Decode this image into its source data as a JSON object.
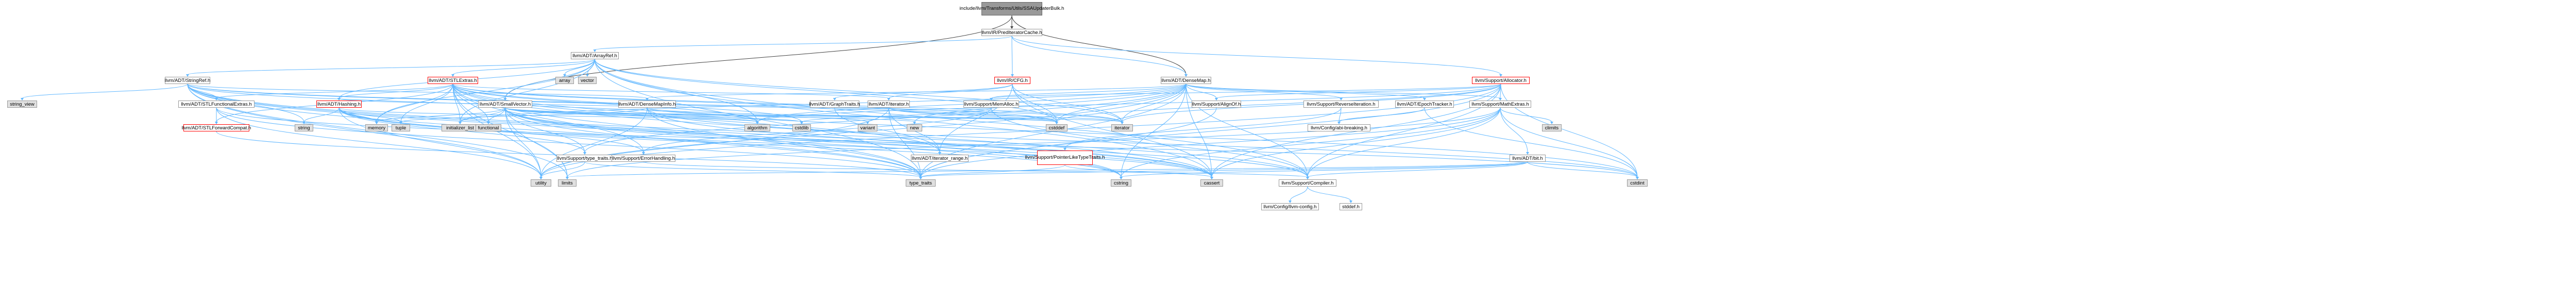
{
  "graph": {
    "title": "include/llvm/Transforms/Utils/SSAUpdaterBulk.h",
    "nodes": [
      {
        "id": "root",
        "label": "include/llvm/Transforms/Utils/SSAUpdaterBulk.h",
        "kind": "root"
      },
      {
        "id": "predcache",
        "label": "llvm/IR/PredIteratorCache.h",
        "kind": "file"
      },
      {
        "id": "arrayref",
        "label": "llvm/ADT/ArrayRef.h",
        "kind": "file"
      },
      {
        "id": "densemap",
        "label": "llvm/ADT/DenseMap.h",
        "kind": "file"
      },
      {
        "id": "allocator",
        "label": "llvm/Support/Allocator.h",
        "kind": "red"
      },
      {
        "id": "cfg",
        "label": "llvm/IR/CFG.h",
        "kind": "red"
      },
      {
        "id": "stringref",
        "label": "llvm/ADT/StringRef.h",
        "kind": "file"
      },
      {
        "id": "stlextras",
        "label": "llvm/ADT/STLExtras.h",
        "kind": "red"
      },
      {
        "id": "array",
        "label": "array",
        "kind": "std"
      },
      {
        "id": "vector",
        "label": "vector",
        "kind": "std"
      },
      {
        "id": "smallvector",
        "label": "llvm/ADT/SmallVector.h",
        "kind": "file"
      },
      {
        "id": "hashing",
        "label": "llvm/ADT/Hashing.h",
        "kind": "red"
      },
      {
        "id": "stlfunc",
        "label": "llvm/ADT/STLFunctionalExtras.h",
        "kind": "file"
      },
      {
        "id": "stlfwd",
        "label": "llvm/ADT/STLForwardCompat.h",
        "kind": "red"
      },
      {
        "id": "densemapinfo",
        "label": "llvm/ADT/DenseMapInfo.h",
        "kind": "file"
      },
      {
        "id": "graphtraits",
        "label": "llvm/ADT/GraphTraits.h",
        "kind": "file"
      },
      {
        "id": "adtiterator",
        "label": "llvm/ADT/iterator.h",
        "kind": "file"
      },
      {
        "id": "memalloc",
        "label": "llvm/Support/MemAlloc.h",
        "kind": "file"
      },
      {
        "id": "alignof",
        "label": "llvm/Support/AlignOf.h",
        "kind": "file"
      },
      {
        "id": "reverseiter",
        "label": "llvm/Support/ReverseIteration.h",
        "kind": "file"
      },
      {
        "id": "epochtracker",
        "label": "llvm/ADT/EpochTracker.h",
        "kind": "file"
      },
      {
        "id": "mathextras",
        "label": "llvm/Support/MathExtras.h",
        "kind": "file"
      },
      {
        "id": "bit",
        "label": "llvm/ADT/bit.h",
        "kind": "file"
      },
      {
        "id": "ptrliketypetraits",
        "label": "llvm/Support/PointerLikeTypeTraits.h",
        "kind": "red"
      },
      {
        "id": "typetraits",
        "label": "llvm/Support/type_traits.h",
        "kind": "file"
      },
      {
        "id": "errorhandling",
        "label": "llvm/Support/ErrorHandling.h",
        "kind": "file"
      },
      {
        "id": "iterrange",
        "label": "llvm/ADT/iterator_range.h",
        "kind": "file"
      },
      {
        "id": "configabi",
        "label": "llvm/Config/abi-breaking.h",
        "kind": "file"
      },
      {
        "id": "compiler",
        "label": "llvm/Support/Compiler.h",
        "kind": "file"
      },
      {
        "id": "llvmconfig",
        "label": "llvm/Config/llvm-config.h",
        "kind": "file"
      },
      {
        "id": "stddef",
        "label": "stddef.h",
        "kind": "file"
      },
      {
        "id": "string_view",
        "label": "string_view",
        "kind": "std"
      },
      {
        "id": "string",
        "label": "string",
        "kind": "std"
      },
      {
        "id": "memory",
        "label": "memory",
        "kind": "std"
      },
      {
        "id": "tuple",
        "label": "tuple",
        "kind": "std"
      },
      {
        "id": "initlist",
        "label": "initializer_list",
        "kind": "std"
      },
      {
        "id": "functional",
        "label": "functional",
        "kind": "std"
      },
      {
        "id": "algorithm",
        "label": "algorithm",
        "kind": "std"
      },
      {
        "id": "cstdlib",
        "label": "cstdlib",
        "kind": "std"
      },
      {
        "id": "variant",
        "label": "variant",
        "kind": "std"
      },
      {
        "id": "new",
        "label": "new",
        "kind": "std"
      },
      {
        "id": "cstddef",
        "label": "cstddef",
        "kind": "std"
      },
      {
        "id": "iterator",
        "label": "iterator",
        "kind": "std"
      },
      {
        "id": "climits",
        "label": "climits",
        "kind": "std"
      },
      {
        "id": "utility",
        "label": "utility",
        "kind": "std"
      },
      {
        "id": "limits",
        "label": "limits",
        "kind": "std"
      },
      {
        "id": "type_traits",
        "label": "type_traits",
        "kind": "std"
      },
      {
        "id": "cstring",
        "label": "cstring",
        "kind": "std"
      },
      {
        "id": "cassert",
        "label": "cassert",
        "kind": "std"
      },
      {
        "id": "cstdint",
        "label": "cstdint",
        "kind": "std"
      }
    ],
    "edges": [
      [
        "root",
        "predcache"
      ],
      [
        "root",
        "densemap"
      ],
      [
        "root",
        "smallvector"
      ],
      [
        "predcache",
        "arrayref"
      ],
      [
        "predcache",
        "densemap"
      ],
      [
        "predcache",
        "allocator"
      ],
      [
        "predcache",
        "cfg"
      ],
      [
        "arrayref",
        "stlextras"
      ],
      [
        "arrayref",
        "smallvector"
      ],
      [
        "arrayref",
        "stringref"
      ],
      [
        "arrayref",
        "array"
      ],
      [
        "arrayref",
        "vector"
      ],
      [
        "arrayref",
        "hashing"
      ],
      [
        "arrayref",
        "compiler"
      ],
      [
        "arrayref",
        "algorithm"
      ],
      [
        "arrayref",
        "cassert"
      ],
      [
        "arrayref",
        "cstddef"
      ],
      [
        "arrayref",
        "initlist"
      ],
      [
        "arrayref",
        "iterator"
      ],
      [
        "arrayref",
        "memory"
      ],
      [
        "arrayref",
        "type_traits"
      ],
      [
        "stringref",
        "stlfunc"
      ],
      [
        "stringref",
        "compiler"
      ],
      [
        "stringref",
        "string_view"
      ],
      [
        "stringref",
        "string"
      ],
      [
        "stringref",
        "algorithm"
      ],
      [
        "stringref",
        "cassert"
      ],
      [
        "stringref",
        "cstddef"
      ],
      [
        "stringref",
        "cstring"
      ],
      [
        "stringref",
        "iterator"
      ],
      [
        "stringref",
        "limits"
      ],
      [
        "stringref",
        "type_traits"
      ],
      [
        "stringref",
        "utility"
      ],
      [
        "stringref",
        "densemapinfo"
      ],
      [
        "stlextras",
        "hashing"
      ],
      [
        "stlextras",
        "stlfunc"
      ],
      [
        "stlextras",
        "stlfwd"
      ],
      [
        "stlextras",
        "iterrange"
      ],
      [
        "stlextras",
        "adtiterator"
      ],
      [
        "stlextras",
        "errorhandling"
      ],
      [
        "stlextras",
        "algorithm"
      ],
      [
        "stlextras",
        "cassert"
      ],
      [
        "stlextras",
        "cstddef"
      ],
      [
        "stlextras",
        "cstdint"
      ],
      [
        "stlextras",
        "cstdlib"
      ],
      [
        "stlextras",
        "functional"
      ],
      [
        "stlextras",
        "initlist"
      ],
      [
        "stlextras",
        "iterator"
      ],
      [
        "stlextras",
        "limits"
      ],
      [
        "stlextras",
        "memory"
      ],
      [
        "stlextras",
        "optional"
      ],
      [
        "stlextras",
        "tuple"
      ],
      [
        "stlextras",
        "type_traits"
      ],
      [
        "stlextras",
        "utility"
      ],
      [
        "hashing",
        "errorhandling"
      ],
      [
        "hashing",
        "typetraits"
      ],
      [
        "hashing",
        "memory"
      ],
      [
        "hashing",
        "algorithm"
      ],
      [
        "hashing",
        "cassert"
      ],
      [
        "hashing",
        "cstring"
      ],
      [
        "hashing",
        "string"
      ],
      [
        "hashing",
        "tuple"
      ],
      [
        "hashing",
        "utility"
      ],
      [
        "stlfunc",
        "stlfwd"
      ],
      [
        "stlfunc",
        "type_traits"
      ],
      [
        "stlfunc",
        "utility"
      ],
      [
        "stlfunc",
        "cstdint"
      ],
      [
        "stlfwd",
        "type_traits"
      ],
      [
        "smallvector",
        "compiler"
      ],
      [
        "smallvector",
        "typetraits"
      ],
      [
        "smallvector",
        "algorithm"
      ],
      [
        "smallvector",
        "cassert"
      ],
      [
        "smallvector",
        "cstddef"
      ],
      [
        "smallvector",
        "cstdlib"
      ],
      [
        "smallvector",
        "cstring"
      ],
      [
        "smallvector",
        "functional"
      ],
      [
        "smallvector",
        "initlist"
      ],
      [
        "smallvector",
        "iterator"
      ],
      [
        "smallvector",
        "limits"
      ],
      [
        "smallvector",
        "memory"
      ],
      [
        "smallvector",
        "new"
      ],
      [
        "smallvector",
        "type_traits"
      ],
      [
        "smallvector",
        "utility"
      ],
      [
        "densemap",
        "densemapinfo"
      ],
      [
        "densemap",
        "epochtracker"
      ],
      [
        "densemap",
        "alignof"
      ],
      [
        "densemap",
        "compiler"
      ],
      [
        "densemap",
        "mathextras"
      ],
      [
        "densemap",
        "memalloc"
      ],
      [
        "densemap",
        "reverseiter"
      ],
      [
        "densemap",
        "typetraits"
      ],
      [
        "densemap",
        "algorithm"
      ],
      [
        "densemap",
        "cassert"
      ],
      [
        "densemap",
        "cstddef"
      ],
      [
        "densemap",
        "cstring"
      ],
      [
        "densemap",
        "initlist"
      ],
      [
        "densemap",
        "iterator"
      ],
      [
        "densemap",
        "new"
      ],
      [
        "densemap",
        "type_traits"
      ],
      [
        "densemap",
        "utility"
      ],
      [
        "densemapinfo",
        "hashing"
      ],
      [
        "densemapinfo",
        "cassert"
      ],
      [
        "densemapinfo",
        "cstddef"
      ],
      [
        "densemapinfo",
        "cstdint"
      ],
      [
        "densemapinfo",
        "tuple"
      ],
      [
        "densemapinfo",
        "type_traits"
      ],
      [
        "densemapinfo",
        "utility"
      ],
      [
        "densemapinfo",
        "variant"
      ],
      [
        "cfg",
        "graphtraits"
      ],
      [
        "cfg",
        "adtiterator"
      ],
      [
        "cfg",
        "iterrange"
      ],
      [
        "cfg",
        "cassert"
      ],
      [
        "cfg",
        "cstddef"
      ],
      [
        "cfg",
        "iterator"
      ],
      [
        "graphtraits",
        "iterrange"
      ],
      [
        "adtiterator",
        "iterrange"
      ],
      [
        "adtiterator",
        "cstddef"
      ],
      [
        "adtiterator",
        "iterator"
      ],
      [
        "adtiterator",
        "type_traits"
      ],
      [
        "adtiterator",
        "utility"
      ],
      [
        "memalloc",
        "compiler"
      ],
      [
        "memalloc",
        "errorhandling"
      ],
      [
        "memalloc",
        "cstdlib"
      ],
      [
        "alignof",
        "type_traits"
      ],
      [
        "reverseiter",
        "ptrliketypetraits"
      ],
      [
        "reverseiter",
        "configabi"
      ],
      [
        "epochtracker",
        "configabi"
      ],
      [
        "epochtracker",
        "cstdint"
      ],
      [
        "allocator",
        "mathextras"
      ],
      [
        "allocator",
        "compiler"
      ],
      [
        "allocator",
        "memalloc"
      ],
      [
        "allocator",
        "alignof"
      ],
      [
        "allocator",
        "algorithm"
      ],
      [
        "allocator",
        "cassert"
      ],
      [
        "allocator",
        "cstddef"
      ],
      [
        "allocator",
        "cstdint"
      ],
      [
        "allocator",
        "iterator"
      ],
      [
        "allocator",
        "type_traits"
      ],
      [
        "allocator",
        "utility"
      ],
      [
        "mathextras",
        "bit"
      ],
      [
        "mathextras",
        "compiler"
      ],
      [
        "mathextras",
        "cassert"
      ],
      [
        "mathextras",
        "climits"
      ],
      [
        "mathextras",
        "cstdint"
      ],
      [
        "mathextras",
        "cstring"
      ],
      [
        "mathextras",
        "limits"
      ],
      [
        "mathextras",
        "type_traits"
      ],
      [
        "bit",
        "compiler"
      ],
      [
        "bit",
        "cstdint"
      ],
      [
        "bit",
        "limits"
      ],
      [
        "bit",
        "type_traits"
      ],
      [
        "bit",
        "cstring"
      ],
      [
        "ptrliketypetraits",
        "type_traits"
      ],
      [
        "ptrliketypetraits",
        "cassert"
      ],
      [
        "typetraits",
        "type_traits"
      ],
      [
        "typetraits",
        "utility"
      ],
      [
        "errorhandling",
        "compiler"
      ],
      [
        "compiler",
        "llvmconfig"
      ],
      [
        "compiler",
        "stddef"
      ]
    ]
  }
}
